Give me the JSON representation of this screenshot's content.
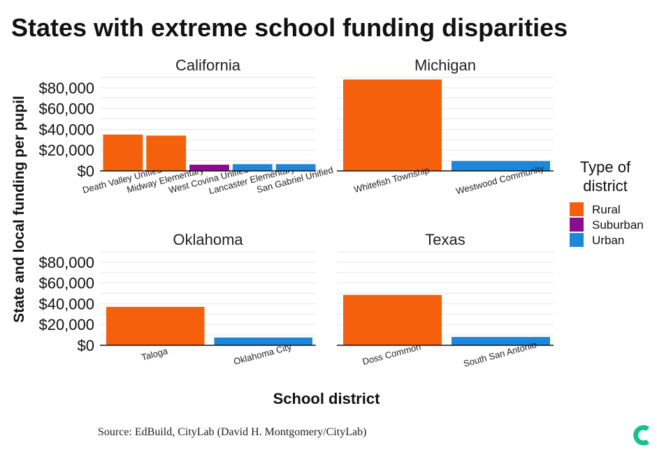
{
  "chart_data": {
    "type": "bar",
    "title": "States with extreme school funding disparities",
    "xlabel": "School district",
    "ylabel": "State and local funding per pupil",
    "ylim": [
      0,
      90000
    ],
    "yticks": [
      0,
      20000,
      40000,
      60000,
      80000
    ],
    "ytick_labels": [
      "$0",
      "$20,000",
      "$40,000",
      "$60,000",
      "$80,000"
    ],
    "grid": true,
    "legend": {
      "title_lines": [
        "Type of",
        "district"
      ],
      "placement": "right",
      "entries": [
        {
          "name": "Rural",
          "color": "#f4600c"
        },
        {
          "name": "Suburban",
          "color": "#8b0d8f"
        },
        {
          "name": "Urban",
          "color": "#1d87d9"
        }
      ]
    },
    "panels": [
      {
        "state": "California",
        "bars": [
          {
            "district": "Death Valley Unified",
            "type": "Rural",
            "value": 35000
          },
          {
            "district": "Midway Elementary",
            "type": "Rural",
            "value": 34000
          },
          {
            "district": "West Covina Unified",
            "type": "Suburban",
            "value": 6000
          },
          {
            "district": "Lancaster Elementary",
            "type": "Urban",
            "value": 6500
          },
          {
            "district": "San Gabriel Unified",
            "type": "Urban",
            "value": 6500
          }
        ]
      },
      {
        "state": "Michigan",
        "bars": [
          {
            "district": "Whitefish Township",
            "type": "Rural",
            "value": 88000
          },
          {
            "district": "Westwood Community",
            "type": "Urban",
            "value": 9500
          }
        ]
      },
      {
        "state": "Oklahoma",
        "bars": [
          {
            "district": "Taloga",
            "type": "Rural",
            "value": 37000
          },
          {
            "district": "Oklahoma City",
            "type": "Urban",
            "value": 7500
          }
        ]
      },
      {
        "state": "Texas",
        "bars": [
          {
            "district": "Doss Common",
            "type": "Rural",
            "value": 48500
          },
          {
            "district": "South San Antonio",
            "type": "Urban",
            "value": 8000
          }
        ]
      }
    ]
  },
  "source": "Source: EdBuild, CityLab (David H. Montgomery/CityLab)",
  "logo": {
    "name": "citylab-logo",
    "color": "#17c08a"
  }
}
